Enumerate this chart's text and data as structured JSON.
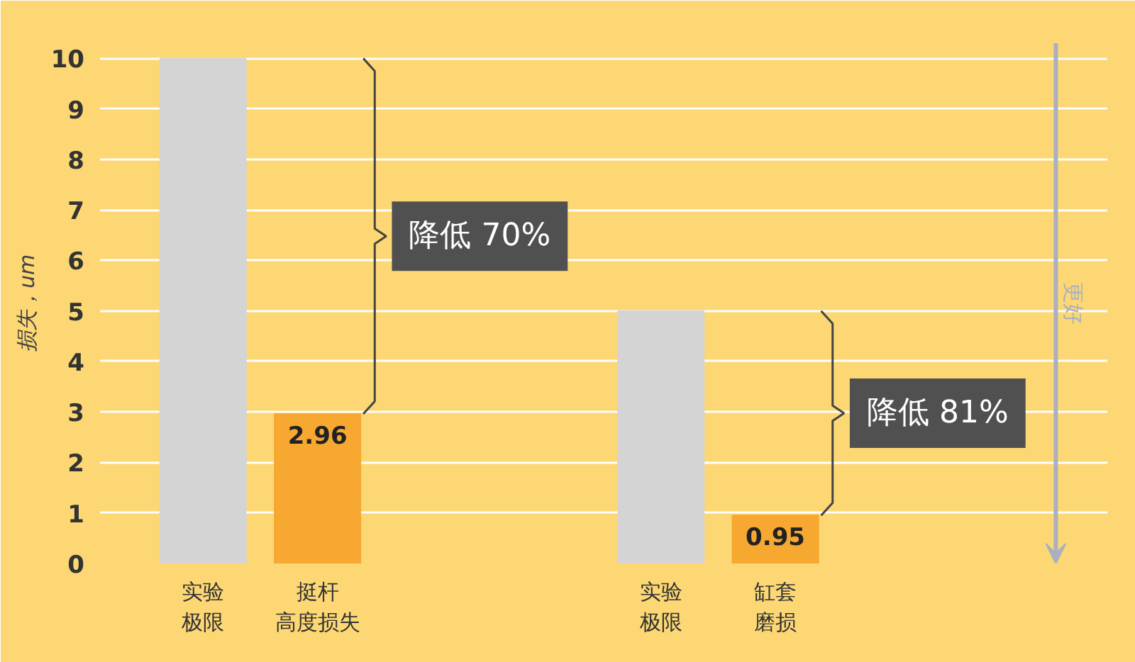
{
  "chart_data": {
    "type": "bar",
    "ylabel": "损失，um",
    "categories": [
      "实验极限",
      "挺杆高度损失",
      null,
      null,
      "实验极限",
      "缸套磨损"
    ],
    "values": [
      10,
      2.96,
      null,
      null,
      5,
      0.95
    ],
    "colors": [
      "#d4d4d4",
      "#f6a831",
      null,
      null,
      "#d4d4d4",
      "#f6a831"
    ],
    "value_labels": [
      null,
      "2.96",
      null,
      null,
      null,
      "0.95"
    ],
    "ylim": [
      0,
      10.3
    ],
    "yticks": [
      0,
      1,
      2,
      3,
      4,
      5,
      6,
      7,
      8,
      9,
      10
    ],
    "grid": "y",
    "annotations": [
      "降低 70%",
      "降低 81%",
      "更好"
    ]
  }
}
